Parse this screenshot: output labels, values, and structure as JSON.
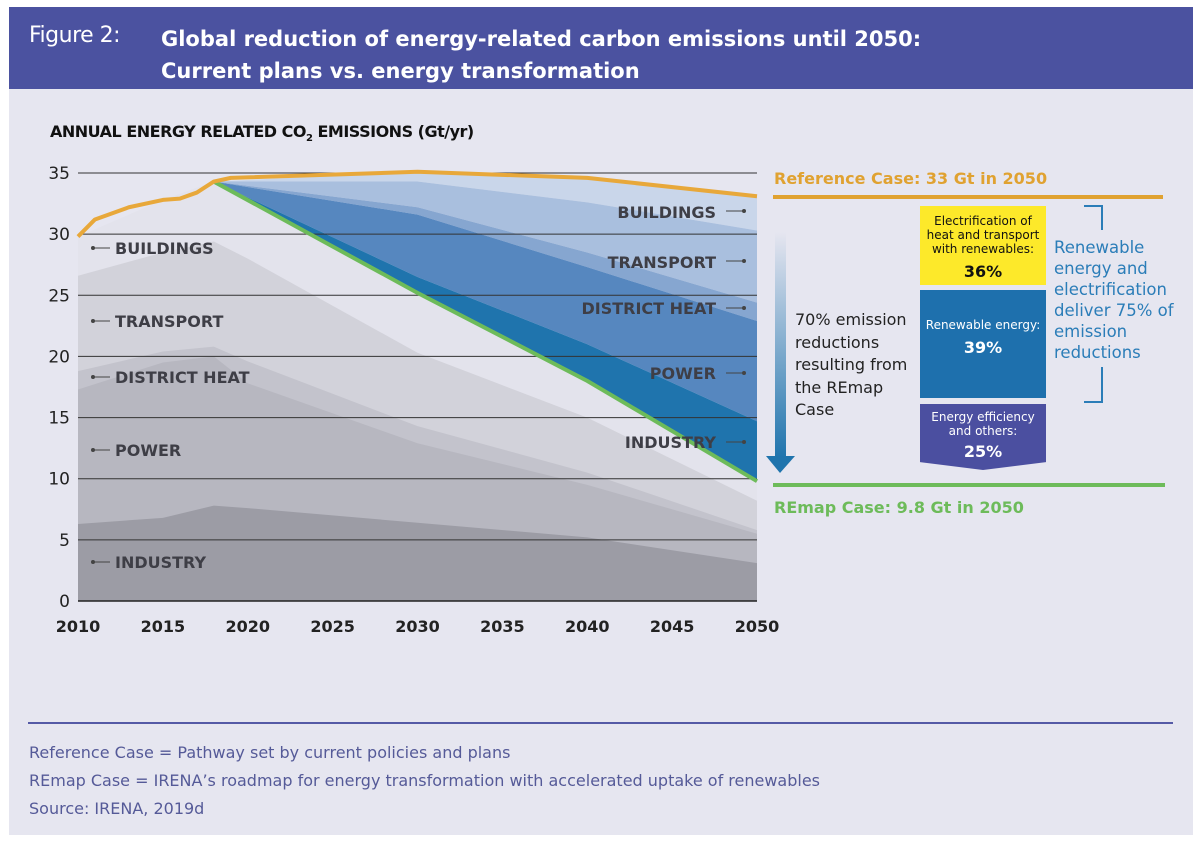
{
  "header": {
    "figure_number": "Figure 2:",
    "title_line1": "Global reduction of energy-related carbon emissions until 2050:",
    "title_line2": "Current plans vs. energy transformation"
  },
  "chart_data": {
    "type": "area",
    "ylabel_main": "ANNUAL ENERGY RELATED CO",
    "ylabel_sub": "2",
    "ylabel_tail": " EMISSIONS (Gt/yr)",
    "xlim": [
      2010,
      2050
    ],
    "ylim": [
      0,
      35
    ],
    "x_ticks": [
      "2010",
      "2015",
      "2020",
      "2025",
      "2030",
      "2035",
      "2040",
      "2045",
      "2050"
    ],
    "y_ticks": [
      "0",
      "5",
      "10",
      "15",
      "20",
      "25",
      "30",
      "35"
    ],
    "grid": "horizontal",
    "reference_case": {
      "label": "Reference Case: 33 Gt in 2050",
      "color": "#e8a83a",
      "x": [
        2010,
        2011,
        2013,
        2015,
        2016,
        2017,
        2018,
        2019,
        2030,
        2040,
        2050
      ],
      "y": [
        29.8,
        31.2,
        32.2,
        32.8,
        32.9,
        33.4,
        34.3,
        34.6,
        35.1,
        34.6,
        33.1
      ]
    },
    "remap_case": {
      "label": "REmap Case: 9.8 Gt in 2050",
      "color": "#6dbb5a",
      "x": [
        2018,
        2030,
        2040,
        2050
      ],
      "y": [
        34.3,
        25.2,
        18.0,
        9.8
      ]
    },
    "remap_stack": {
      "x": [
        2010,
        2015,
        2018,
        2020,
        2030,
        2040,
        2050
      ],
      "series": [
        {
          "name": "BUILDINGS",
          "top": [
            29.8,
            32.8,
            34.3,
            32.8,
            25.2,
            18.0,
            9.8
          ],
          "color": "#e3e3ec"
        },
        {
          "name": "TRANSPORT",
          "top": [
            26.6,
            28.5,
            29.4,
            28.0,
            20.3,
            15.0,
            8.2
          ],
          "color": "#d2d2da"
        },
        {
          "name": "DISTRICT HEAT",
          "top": [
            18.8,
            20.4,
            20.8,
            19.6,
            14.3,
            10.5,
            5.8
          ],
          "color": "#c3c3cc"
        },
        {
          "name": "POWER",
          "top": [
            17.3,
            19.5,
            20.0,
            17.8,
            12.9,
            9.5,
            5.5
          ],
          "color": "#b7b7c0"
        },
        {
          "name": "INDUSTRY",
          "top": [
            6.3,
            6.8,
            7.8,
            7.6,
            6.4,
            5.2,
            3.1
          ],
          "color": "#9c9ca5"
        }
      ]
    },
    "reduction_wedges": {
      "x": [
        2018,
        2030,
        2040,
        2050
      ],
      "series": [
        {
          "name": "BUILDINGS",
          "top": [
            34.3,
            35.1,
            34.6,
            33.1
          ],
          "color": "#c9d6ea"
        },
        {
          "name": "TRANSPORT",
          "top": [
            34.3,
            34.3,
            32.6,
            30.3
          ],
          "color": "#a9bfde"
        },
        {
          "name": "DISTRICT HEAT",
          "top": [
            34.3,
            32.2,
            28.5,
            24.4
          ],
          "color": "#86a6d0"
        },
        {
          "name": "POWER",
          "top": [
            34.3,
            31.6,
            27.3,
            22.9
          ],
          "color": "#5687bf"
        },
        {
          "name": "INDUSTRY",
          "top": [
            34.3,
            26.5,
            21.0,
            14.7
          ],
          "color": "#1f74ad"
        }
      ]
    }
  },
  "annotations": {
    "reduction_text": "70% emission reductions resulting from the REmap Case",
    "electrification": {
      "label": "Electrification of heat and transport with renewables:",
      "value": "36%",
      "color": "#fde92a"
    },
    "renewables": {
      "label": "Renewable energy:",
      "value": "39%",
      "color": "#1e70ad"
    },
    "efficiency": {
      "label": "Energy efficiency and others:",
      "value": "25%",
      "color": "#4b4fa0"
    },
    "bracket_text": "Renewable energy and electrification deliver 75% of emission reductions"
  },
  "notes": [
    "Reference Case = Pathway set by current policies and plans",
    "REmap Case = IRENA’s roadmap for energy transformation with accelerated uptake of renewables",
    "Source: IRENA, 2019d"
  ]
}
